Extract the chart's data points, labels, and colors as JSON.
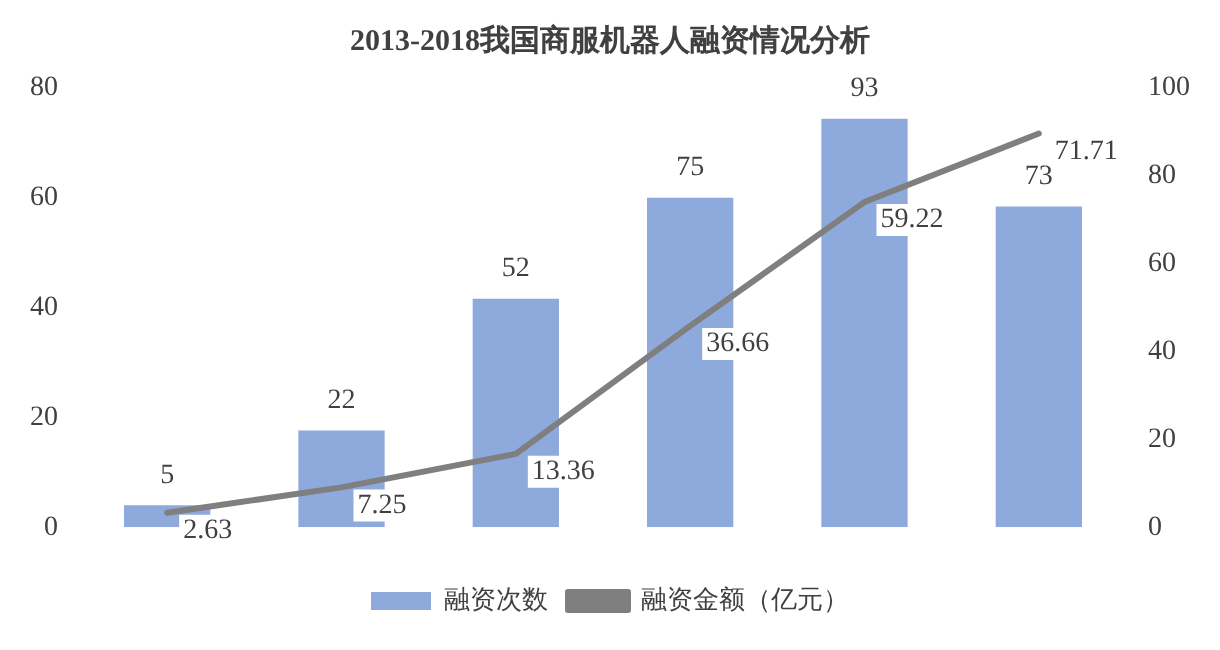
{
  "chart_data": {
    "type": "bar",
    "title": "2013-2018我国商服机器人融资情况分析",
    "categories": [
      null,
      null,
      null,
      null,
      null,
      null
    ],
    "series": [
      {
        "name": "融资次数",
        "axis": "y2",
        "color": "#8eaadc",
        "values": [
          5,
          22,
          52,
          75,
          93,
          73
        ]
      },
      {
        "name": "融资金额（亿元）",
        "type": "line",
        "axis": "y",
        "color": "#7f7f7f",
        "values": [
          2.63,
          7.25,
          13.36,
          36.66,
          59.22,
          71.71
        ]
      }
    ],
    "ylim": [
      0,
      80
    ],
    "yticks": [
      0,
      20,
      40,
      60,
      80
    ],
    "y2lim": [
      0,
      100
    ],
    "y2ticks": [
      0,
      20,
      40,
      60,
      80,
      100
    ],
    "data_labels": true,
    "grid": false,
    "legend": "bottom",
    "marker": "none",
    "line_style": "solid"
  }
}
